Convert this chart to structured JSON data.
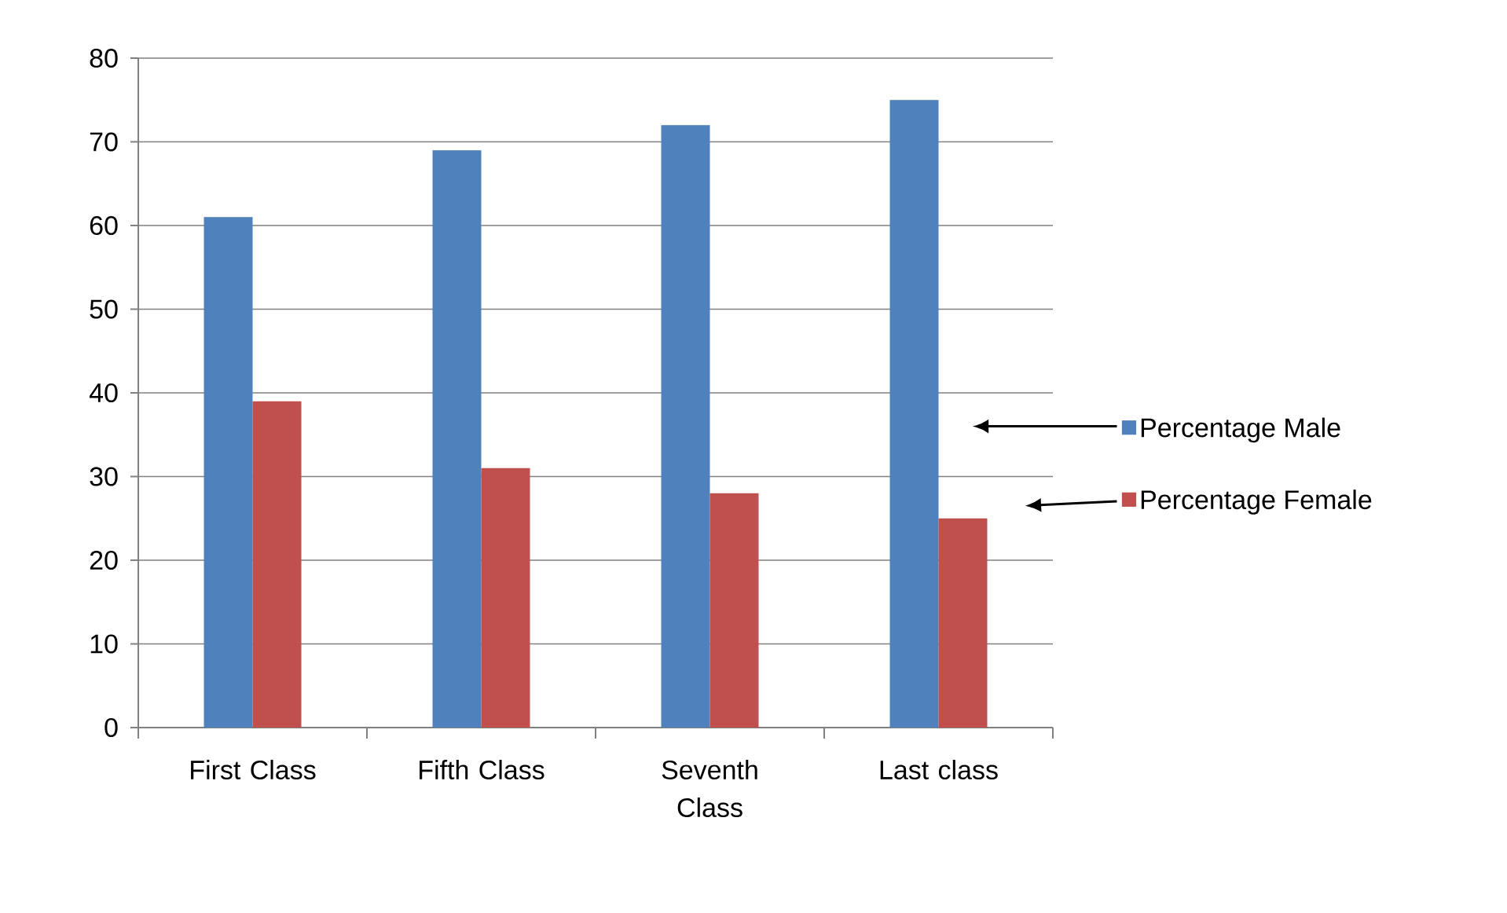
{
  "chart_data": {
    "type": "bar",
    "categories": [
      "First Class",
      "Fifth Class",
      "Seventh Class",
      "Last class"
    ],
    "series": [
      {
        "name": "Percentage Male",
        "color": "#4f81bd",
        "values": [
          61,
          69,
          72,
          75
        ]
      },
      {
        "name": "Percentage Female",
        "color": "#c0504d",
        "values": [
          39,
          31,
          28,
          25
        ]
      }
    ],
    "ylim": [
      0,
      80
    ],
    "yticks": [
      0,
      10,
      20,
      30,
      40,
      50,
      60,
      70,
      80
    ],
    "grid": "y",
    "legend": "right"
  }
}
